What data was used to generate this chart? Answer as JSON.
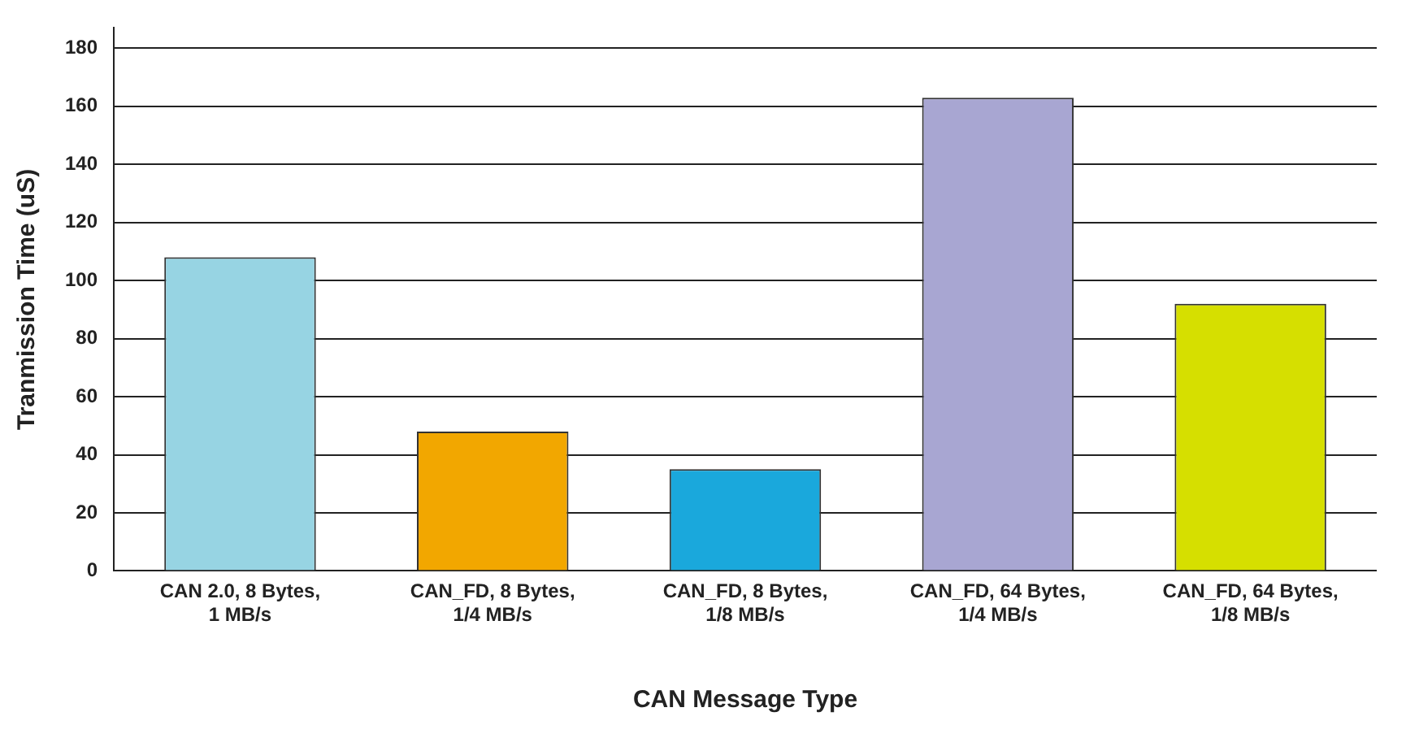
{
  "chart_data": {
    "type": "bar",
    "xlabel": "CAN Message Type",
    "ylabel": "Tranmission Time (uS)",
    "categories": [
      "CAN 2.0, 8 Bytes, 1 MB/s",
      "CAN_FD, 8 Bytes, 1/4 MB/s",
      "CAN_FD, 8 Bytes, 1/8 MB/s",
      "CAN_FD, 64 Bytes, 1/4 MB/s",
      "CAN_FD, 64 Bytes, 1/8 MB/s"
    ],
    "values": [
      108,
      48,
      35,
      163,
      92
    ],
    "colors": [
      "#97d4e3",
      "#f2a700",
      "#1aa8dc",
      "#a8a6d2",
      "#d6df00"
    ],
    "ylim": [
      0,
      187
    ],
    "yticks": [
      0,
      20,
      40,
      60,
      80,
      100,
      120,
      140,
      160,
      180
    ],
    "grid": "y",
    "legend": false
  }
}
